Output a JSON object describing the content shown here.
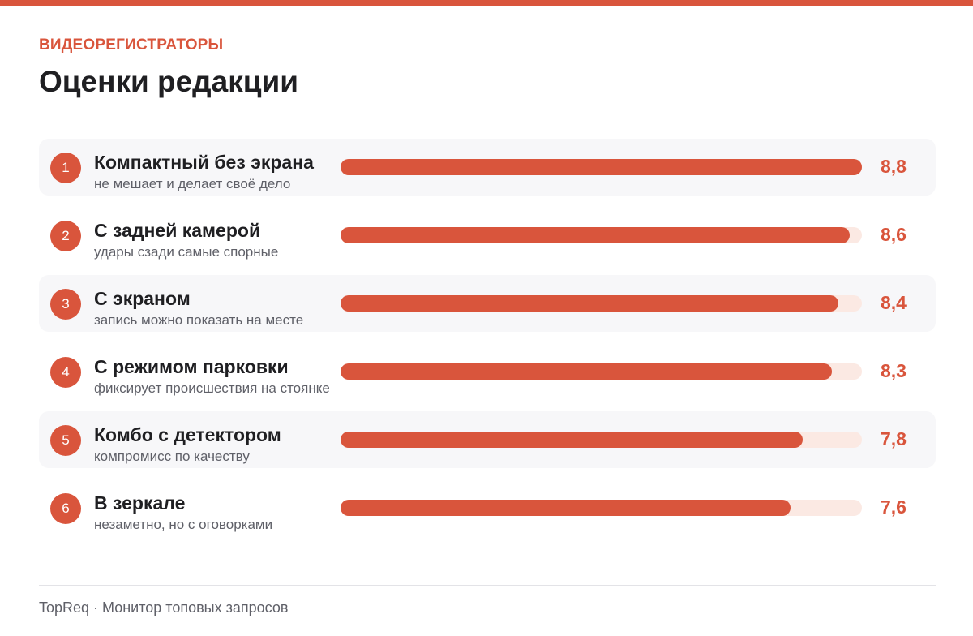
{
  "header": {
    "kicker": "ВИДЕОРЕГИСТРАТОРЫ",
    "title": "Оценки редакции"
  },
  "colors": {
    "accent": "#d9553c",
    "track": "#fbe9e3",
    "row_shade": "#f7f7f9"
  },
  "chart_data": {
    "type": "bar",
    "orientation": "horizontal",
    "title": "Оценки редакции",
    "xlim": [
      0,
      8.8
    ],
    "items": [
      {
        "rank": "1",
        "name": "Компактный без экрана",
        "description": "не мешает и делает своё дело",
        "value": 8.8,
        "value_label": "8,8"
      },
      {
        "rank": "2",
        "name": "С задней камерой",
        "description": "удары сзади самые спорные",
        "value": 8.6,
        "value_label": "8,6"
      },
      {
        "rank": "3",
        "name": "С экраном",
        "description": "запись можно показать на месте",
        "value": 8.4,
        "value_label": "8,4"
      },
      {
        "rank": "4",
        "name": "С режимом парковки",
        "description": "фиксирует происшествия на стоянке",
        "value": 8.3,
        "value_label": "8,3"
      },
      {
        "rank": "5",
        "name": "Комбо с детектором",
        "description": "компромисс по качеству",
        "value": 7.8,
        "value_label": "7,8"
      },
      {
        "rank": "6",
        "name": "В зеркале",
        "description": "незаметно, но с оговорками",
        "value": 7.6,
        "value_label": "7,6"
      }
    ]
  },
  "footer": {
    "text": "TopReq · Монитор топовых запросов"
  }
}
